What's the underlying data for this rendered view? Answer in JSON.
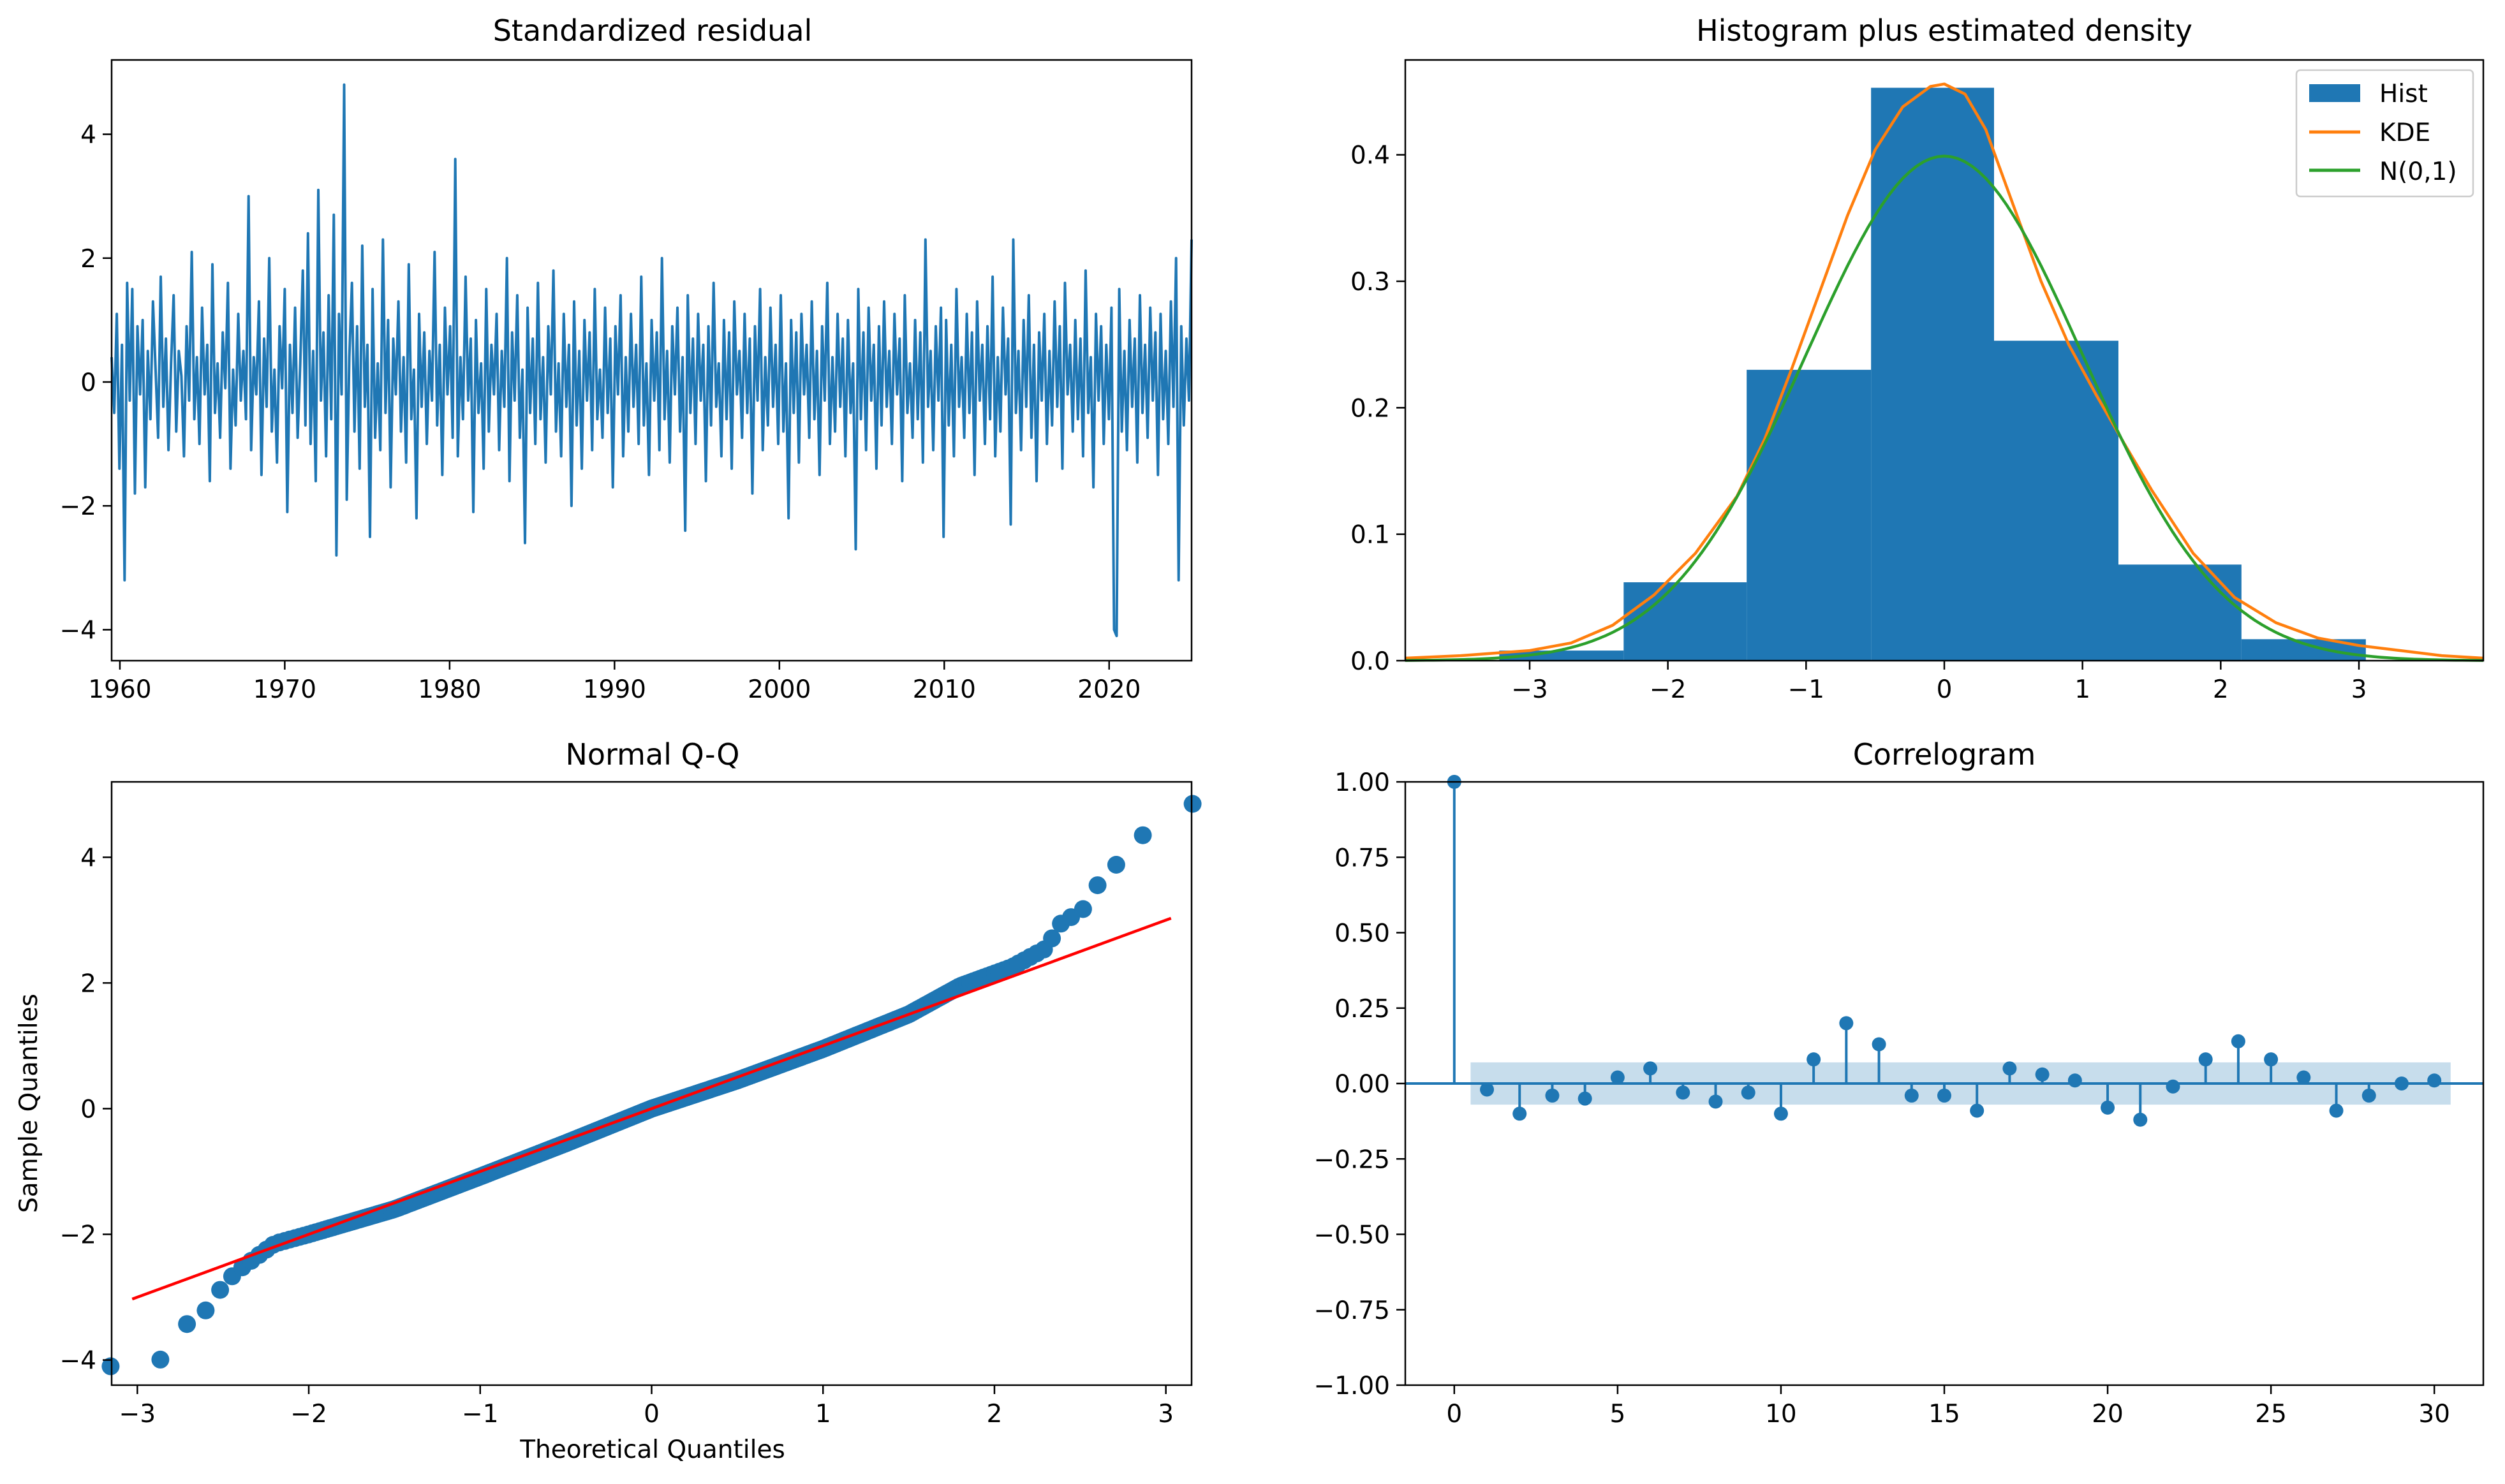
{
  "chart_data": [
    {
      "id": "residual",
      "type": "line",
      "title": "Standardized residual",
      "xlabel": "",
      "ylabel": "",
      "x_start": 1959.5,
      "x_end": 2025.0,
      "xlim": [
        1959.5,
        2025.0
      ],
      "ylim": [
        -4.5,
        5.2
      ],
      "xticks": [
        1960,
        1970,
        1980,
        1990,
        2000,
        2010,
        2020
      ],
      "yticks": [
        -4,
        -2,
        0,
        2,
        4
      ],
      "color": "#1f77b4",
      "values": [
        0.4,
        -0.5,
        1.1,
        -1.4,
        0.6,
        -3.2,
        1.6,
        -0.3,
        1.5,
        -1.8,
        0.9,
        -0.2,
        1.0,
        -1.7,
        0.5,
        -0.6,
        1.3,
        0.2,
        -0.9,
        1.7,
        -0.4,
        0.7,
        -1.1,
        0.3,
        1.4,
        -0.8,
        0.5,
        0.1,
        -1.2,
        0.9,
        -0.3,
        2.1,
        -0.6,
        0.4,
        -1.0,
        1.2,
        -0.2,
        0.6,
        -1.6,
        1.9,
        -0.5,
        0.3,
        -0.9,
        0.8,
        -0.1,
        1.6,
        -1.4,
        0.2,
        -0.7,
        1.1,
        -0.3,
        0.5,
        -0.6,
        3.0,
        -1.1,
        0.4,
        -0.2,
        1.3,
        -1.5,
        0.7,
        -0.4,
        2.0,
        -0.8,
        0.2,
        -1.3,
        0.9,
        -0.1,
        1.5,
        -2.1,
        0.6,
        -0.5,
        1.2,
        -0.9,
        0.3,
        1.8,
        -0.7,
        2.4,
        -1.0,
        0.5,
        -1.6,
        3.1,
        -0.3,
        0.8,
        -1.2,
        1.4,
        -0.6,
        2.7,
        -2.8,
        1.1,
        -0.2,
        4.8,
        -1.9,
        0.4,
        1.6,
        -0.8,
        0.9,
        -1.4,
        2.2,
        -0.4,
        0.6,
        -2.5,
        1.5,
        -0.9,
        0.3,
        -1.1,
        2.3,
        -0.5,
        1.0,
        -1.7,
        0.7,
        -0.2,
        1.3,
        -0.8,
        0.4,
        -1.3,
        1.9,
        -0.6,
        0.2,
        -2.2,
        1.1,
        -0.4,
        0.8,
        -1.0,
        0.5,
        -0.3,
        2.1,
        -0.7,
        0.6,
        -1.5,
        1.2,
        -0.2,
        0.9,
        -0.9,
        3.6,
        -1.2,
        0.4,
        -0.6,
        1.7,
        -0.3,
        0.7,
        -2.1,
        1.0,
        -0.5,
        0.3,
        -1.4,
        1.5,
        -0.8,
        0.6,
        -0.2,
        1.1,
        -1.1,
        0.5,
        -0.4,
        2.0,
        -1.6,
        0.8,
        -0.3,
        1.4,
        -0.9,
        0.2,
        -2.6,
        1.2,
        -0.5,
        0.7,
        -1.0,
        1.6,
        -0.6,
        0.4,
        -1.3,
        0.9,
        -0.2,
        1.8,
        -0.8,
        0.3,
        -1.2,
        1.1,
        -0.4,
        0.6,
        -2.0,
        1.3,
        -0.7,
        0.5,
        -1.4,
        1.0,
        -0.3,
        0.8,
        -1.1,
        1.5,
        -0.6,
        0.2,
        -0.9,
        1.2,
        -0.5,
        0.7,
        -1.7,
        0.9,
        -0.2,
        1.4,
        -1.2,
        0.4,
        -0.8,
        1.1,
        -0.4,
        0.6,
        -1.0,
        1.7,
        -0.7,
        0.3,
        -1.5,
        1.0,
        -0.3,
        0.8,
        -1.1,
        2.0,
        -0.6,
        0.5,
        -1.3,
        0.9,
        -0.2,
        1.2,
        -0.8,
        0.4,
        -2.4,
        1.4,
        -0.5,
        0.7,
        -1.0,
        1.1,
        -0.3,
        0.6,
        -1.6,
        0.9,
        -0.7,
        1.6,
        -0.4,
        0.3,
        -1.2,
        1.0,
        -0.6,
        0.8,
        -1.4,
        1.3,
        -0.2,
        0.5,
        -0.9,
        1.1,
        -0.5,
        0.7,
        -1.8,
        0.9,
        -0.3,
        1.5,
        -1.1,
        0.4,
        -0.7,
        1.2,
        -0.4,
        0.6,
        -1.0,
        1.4,
        -0.8,
        0.3,
        -2.2,
        1.0,
        -0.5,
        0.8,
        -1.3,
        1.1,
        -0.2,
        0.6,
        -0.9,
        1.3,
        -0.6,
        0.5,
        -1.5,
        0.9,
        -0.3,
        1.6,
        -1.0,
        0.4,
        -0.8,
        1.1,
        -0.4,
        0.7,
        -1.2,
        1.0,
        -0.5,
        0.3,
        -2.7,
        1.5,
        -0.6,
        0.8,
        -1.1,
        1.2,
        -0.3,
        0.6,
        -1.4,
        0.9,
        -0.7,
        1.3,
        -0.4,
        0.5,
        -1.0,
        1.1,
        -0.2,
        0.7,
        -1.6,
        1.4,
        -0.5,
        0.3,
        -0.9,
        1.0,
        -0.6,
        0.8,
        -1.3,
        2.3,
        -0.4,
        0.5,
        -1.1,
        0.9,
        -0.3,
        1.2,
        -2.5,
        1.0,
        -0.7,
        0.6,
        -1.2,
        1.5,
        -0.4,
        0.4,
        -0.9,
        1.1,
        -0.5,
        0.8,
        -1.5,
        1.3,
        -0.3,
        0.6,
        -1.0,
        0.9,
        -0.6,
        1.7,
        -1.2,
        0.4,
        -0.8,
        1.2,
        -0.2,
        0.7,
        -2.3,
        2.3,
        -0.5,
        0.5,
        -1.1,
        1.0,
        -0.4,
        1.4,
        -0.9,
        0.6,
        -1.6,
        0.8,
        -0.3,
        1.1,
        -1.0,
        0.5,
        -0.7,
        1.3,
        -0.4,
        0.9,
        -1.4,
        1.6,
        -0.2,
        0.6,
        -0.8,
        1.0,
        -0.6,
        0.7,
        -1.2,
        1.8,
        -0.5,
        0.4,
        -1.7,
        1.1,
        -0.3,
        0.9,
        -1.0,
        0.6,
        -0.6,
        1.2,
        -4.0,
        -4.1,
        1.5,
        -0.8,
        0.5,
        -1.1,
        1.0,
        -0.4,
        0.7,
        -1.3,
        1.4,
        -0.5,
        0.6,
        -0.9,
        1.2,
        -0.3,
        0.8,
        -1.5,
        1.1,
        -0.6,
        0.5,
        -1.0,
        1.3,
        -0.4,
        2.0,
        -3.2,
        0.9,
        -0.7,
        0.7,
        -0.3,
        2.3
      ]
    },
    {
      "id": "histogram",
      "type": "bar",
      "title": "Histogram plus estimated density",
      "xlabel": "",
      "ylabel": "",
      "xlim": [
        -3.9,
        3.9
      ],
      "ylim": [
        0,
        0.475
      ],
      "xticks": [
        -3,
        -2,
        -1,
        0,
        1,
        2,
        3
      ],
      "yticks": [
        0.0,
        0.1,
        0.2,
        0.3,
        0.4
      ],
      "bin_edges": [
        -3.22,
        -2.32,
        -1.43,
        -0.53,
        0.36,
        1.26,
        2.15,
        3.05
      ],
      "values": [
        0.008,
        0.062,
        0.23,
        0.453,
        0.253,
        0.076,
        0.017
      ],
      "legend_position": "top-right",
      "legend": [
        {
          "label": "Hist",
          "color": "#1f77b4",
          "kind": "patch"
        },
        {
          "label": "KDE",
          "color": "#ff7f0e",
          "kind": "line"
        },
        {
          "label": "N(0,1)",
          "color": "#2ca02c",
          "kind": "line"
        }
      ],
      "series": [
        {
          "name": "Hist",
          "color": "#1f77b4"
        },
        {
          "name": "KDE",
          "color": "#ff7f0e",
          "x": [
            -3.9,
            -3.5,
            -3.0,
            -2.7,
            -2.4,
            -2.1,
            -1.8,
            -1.5,
            -1.3,
            -1.1,
            -0.9,
            -0.7,
            -0.5,
            -0.3,
            -0.1,
            0.0,
            0.15,
            0.3,
            0.5,
            0.7,
            0.9,
            1.1,
            1.3,
            1.5,
            1.8,
            2.1,
            2.4,
            2.7,
            3.0,
            3.3,
            3.6,
            3.9
          ],
          "y": [
            0.002,
            0.004,
            0.008,
            0.014,
            0.028,
            0.052,
            0.085,
            0.13,
            0.175,
            0.232,
            0.292,
            0.352,
            0.404,
            0.438,
            0.454,
            0.456,
            0.448,
            0.42,
            0.36,
            0.3,
            0.25,
            0.21,
            0.172,
            0.135,
            0.085,
            0.05,
            0.03,
            0.018,
            0.012,
            0.008,
            0.004,
            0.002
          ]
        },
        {
          "name": "N(0,1)",
          "color": "#2ca02c",
          "function": "standard-normal-pdf"
        }
      ]
    },
    {
      "id": "qq",
      "type": "scatter",
      "title": "Normal Q-Q",
      "xlabel": "Theoretical Quantiles",
      "ylabel": "Sample Quantiles",
      "xlim": [
        -3.15,
        3.15
      ],
      "ylim": [
        -4.4,
        5.2
      ],
      "xticks": [
        -3,
        -2,
        -1,
        0,
        1,
        2,
        3
      ],
      "yticks": [
        -4,
        -2,
        0,
        2,
        4
      ],
      "point_color": "#1f77b4",
      "line_color": "#ff0000",
      "reference_line": {
        "x": [
          -3.03,
          3.03
        ],
        "y": [
          -3.03,
          3.03
        ]
      },
      "n_points": 781,
      "profile_x": [
        -3.03,
        -2.8,
        -2.68,
        -2.58,
        -2.5,
        -2.4,
        -2.3,
        -2.2,
        -2.0,
        -1.5,
        -1.0,
        -0.5,
        0.0,
        0.5,
        1.0,
        1.5,
        1.8,
        2.0,
        2.1,
        2.2,
        2.3,
        2.4,
        2.5,
        2.6,
        2.8,
        3.03
      ],
      "profile_y": [
        -4.1,
        -3.95,
        -3.25,
        -3.2,
        -2.8,
        -2.55,
        -2.35,
        -2.15,
        -2.0,
        -1.6,
        -1.08,
        -0.55,
        0.0,
        0.45,
        0.95,
        1.5,
        1.95,
        2.15,
        2.25,
        2.4,
        2.55,
        3.0,
        3.1,
        3.55,
        4.15,
        4.85
      ]
    },
    {
      "id": "correlogram",
      "type": "stem",
      "title": "Correlogram",
      "xlabel": "",
      "ylabel": "",
      "xlim": [
        -1.5,
        31.5
      ],
      "ylim": [
        -1.0,
        1.0
      ],
      "xticks": [
        0,
        5,
        10,
        15,
        20,
        25,
        30
      ],
      "yticks": [
        -1.0,
        -0.75,
        -0.5,
        -0.25,
        0.0,
        0.25,
        0.5,
        0.75,
        1.0
      ],
      "ytick_labels": [
        "−1.00",
        "−0.75",
        "−0.50",
        "−0.25",
        "0.00",
        "0.25",
        "0.50",
        "0.75",
        "1.00"
      ],
      "color": "#1f77b4",
      "confidence_band": 0.07,
      "lags": [
        0,
        1,
        2,
        3,
        4,
        5,
        6,
        7,
        8,
        9,
        10,
        11,
        12,
        13,
        14,
        15,
        16,
        17,
        18,
        19,
        20,
        21,
        22,
        23,
        24,
        25,
        26,
        27,
        28,
        29,
        30
      ],
      "values": [
        1.0,
        -0.02,
        -0.1,
        -0.04,
        -0.05,
        0.02,
        0.05,
        -0.03,
        -0.06,
        -0.03,
        -0.1,
        0.08,
        0.2,
        0.13,
        -0.04,
        -0.04,
        -0.09,
        0.05,
        0.03,
        0.01,
        -0.08,
        -0.12,
        -0.01,
        0.08,
        0.14,
        0.08,
        0.02,
        -0.09,
        -0.04,
        0.0,
        0.01
      ]
    }
  ]
}
